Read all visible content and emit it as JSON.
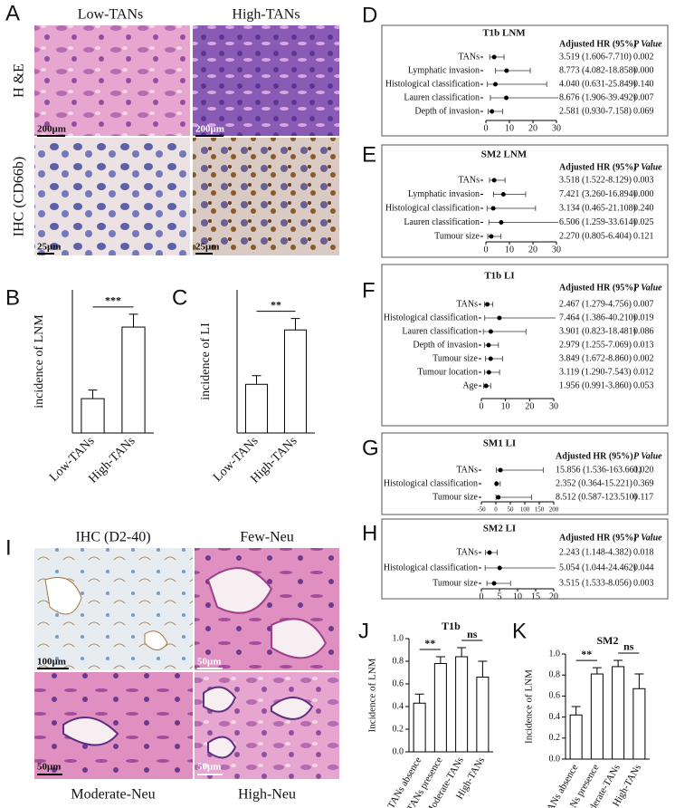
{
  "image_panels": [
    {
      "panel": "A",
      "column_labels": [
        "Low-TANs",
        "High-TANs"
      ],
      "row_labels": [
        "H &E",
        "IHC (CD66b)"
      ],
      "scale_bars": [
        "200μm",
        "200μm",
        "25μm",
        "25μm"
      ]
    },
    {
      "panel": "I",
      "titles": [
        "IHC (D2-40)",
        "Few-Neu",
        "Moderate-Neu",
        "High-Neu"
      ],
      "scale_bars": [
        "100μm",
        "50μm",
        "50μm",
        "50μm"
      ]
    }
  ],
  "chart_data": [
    {
      "type": "bar",
      "panel": "B",
      "y_label": "incidence of LNM",
      "categories": [
        "Low-TANs",
        "High-TANs"
      ],
      "values": [
        0.12,
        0.37
      ],
      "errors": [
        0.03,
        0.045
      ],
      "color": "#ffffff",
      "ylim": [
        0,
        0.5
      ],
      "annotations": [
        "***"
      ]
    },
    {
      "type": "bar",
      "panel": "C",
      "y_label": "incidence of LI",
      "categories": [
        "Low-TANs",
        "High-TANs"
      ],
      "values": [
        0.17,
        0.36
      ],
      "errors": [
        0.03,
        0.04
      ],
      "color": "#ffffff",
      "ylim": [
        0,
        0.5
      ],
      "annotations": [
        "**"
      ]
    },
    {
      "type": "forest",
      "panel": "D",
      "title": "T1b LNM",
      "columns": [
        "Adjusted HR (95%)",
        "P Value"
      ],
      "categories": [
        "TANs",
        "Lymphatic invasion",
        "Histological classification",
        "Lauren classification",
        "Depth of invasion"
      ],
      "values": [
        3.519,
        8.773,
        4.04,
        8.676,
        2.581
      ],
      "lower": [
        1.606,
        4.082,
        0.631,
        1.906,
        0.93
      ],
      "upper": [
        7.71,
        18.858,
        25.849,
        39.492,
        7.158
      ],
      "value_labels": [
        "3.519 (1.606-7.710)",
        "8.773 (4.082-18.858)",
        "4.040 (0.631-25.849)",
        "8.676 (1.906-39.492)",
        "2.581 (0.930-7.158)"
      ],
      "p_values": [
        "0.002",
        "0.000",
        "0.140",
        "0.007",
        "0.069"
      ],
      "xlim": [
        0,
        30
      ],
      "xticks": [
        0,
        10,
        20,
        30
      ]
    },
    {
      "type": "forest",
      "panel": "E",
      "title": "SM2 LNM",
      "columns": [
        "Adjusted HR (95%)",
        "P Value"
      ],
      "categories": [
        "TANs",
        "Lymphatic invasion",
        "Histological classification",
        "Lauren classification",
        "Tumour size"
      ],
      "values": [
        3.518,
        7.421,
        3.134,
        6.506,
        2.27
      ],
      "lower": [
        1.522,
        3.26,
        0.465,
        1.259,
        0.805
      ],
      "upper": [
        8.129,
        16.894,
        21.108,
        33.614,
        6.404
      ],
      "value_labels": [
        "3.518 (1.522-8.129)",
        "7.421 (3.260-16.894)",
        "3.134 (0.465-21.108)",
        "6.506 (1.259-33.614)",
        "2.270 (0.805-6.404)"
      ],
      "p_values": [
        "0.003",
        "0.000",
        "0.240",
        "0.025",
        "0.121"
      ],
      "xlim": [
        0,
        30
      ],
      "xticks": [
        0,
        10,
        20,
        30
      ]
    },
    {
      "type": "forest",
      "panel": "F",
      "title": "T1b LI",
      "columns": [
        "Adjusted HR (95%)",
        "P Value"
      ],
      "categories": [
        "TANs",
        "Histological classification",
        "Lauren classification",
        "Depth of invasion",
        "Tumour size",
        "Tumour location",
        "Age"
      ],
      "values": [
        2.467,
        7.464,
        3.901,
        2.979,
        3.849,
        3.119,
        1.956
      ],
      "lower": [
        1.279,
        1.386,
        0.823,
        1.255,
        1.672,
        1.29,
        0.991
      ],
      "upper": [
        4.756,
        40.21,
        18.481,
        7.069,
        8.86,
        7.543,
        3.86
      ],
      "value_labels": [
        "2.467 (1.279-4.756)",
        "7.464 (1.386-40.210)",
        "3.901 (0.823-18.481)",
        "2.979 (1.255-7.069)",
        "3.849 (1.672-8.860)",
        "3.119 (1.290-7.543)",
        "1.956 (0.991-3.860)"
      ],
      "p_values": [
        "0.007",
        "0.019",
        "0.086",
        "0.013",
        "0.002",
        "0.012",
        "0.053"
      ],
      "xlim": [
        0,
        30
      ],
      "xticks": [
        0,
        10,
        20,
        30
      ]
    },
    {
      "type": "forest",
      "panel": "G",
      "title": "SM1 LI",
      "columns": [
        "Adjusted HR (95%)",
        "P Value"
      ],
      "categories": [
        "TANs",
        "Histological classification",
        "Tumour size"
      ],
      "values": [
        15.856,
        2.352,
        8.512
      ],
      "lower": [
        1.536,
        0.364,
        0.587
      ],
      "upper": [
        163.661,
        15.221,
        123.51
      ],
      "value_labels": [
        "15.856 (1.536-163.661)",
        "2.352 (0.364-15.221)",
        "8.512 (0.587-123.510)"
      ],
      "p_values": [
        "0.020",
        "0.369",
        "0.117"
      ],
      "xlim": [
        -50,
        200
      ],
      "xticks": [
        -50,
        0,
        50,
        100,
        150,
        200
      ]
    },
    {
      "type": "forest",
      "panel": "H",
      "title": "SM2 LI",
      "columns": [
        "Adjusted HR (95%)",
        "P Value"
      ],
      "categories": [
        "TANs",
        "Histological classification",
        "Tumour size"
      ],
      "values": [
        2.243,
        5.054,
        3.515
      ],
      "lower": [
        1.148,
        1.044,
        1.533
      ],
      "upper": [
        4.382,
        24.462,
        8.056
      ],
      "value_labels": [
        "2.243 (1.148-4.382)",
        "5.054 (1.044-24.462)",
        "3.515 (1.533-8.056)"
      ],
      "p_values": [
        "0.018",
        "0.044",
        "0.003"
      ],
      "xlim": [
        0,
        20
      ],
      "xticks": [
        0,
        5,
        10,
        15,
        20
      ]
    },
    {
      "type": "bar",
      "panel": "J",
      "title": "T1b",
      "y_label": "Incidence of LNM",
      "categories": [
        "TANs absence",
        "TANs presence",
        "Moderate-TANs",
        "High-TANs"
      ],
      "values": [
        0.43,
        0.78,
        0.84,
        0.66
      ],
      "errors": [
        0.08,
        0.06,
        0.08,
        0.14
      ],
      "color": "#ffffff",
      "ylim": [
        0,
        1
      ],
      "yticks": [
        {
          "value": 0,
          "label": "0.0"
        },
        0.2,
        0.4,
        0.6,
        0.8,
        {
          "value": 1,
          "label": "1.0"
        }
      ],
      "annotations": [
        "**",
        "ns"
      ]
    },
    {
      "type": "bar",
      "panel": "K",
      "title": "SM2",
      "y_label": "Incidence of LNM",
      "categories": [
        "TANs absence",
        "TANs presence",
        "Moderate-TANs",
        "High-TANs"
      ],
      "values": [
        0.42,
        0.81,
        0.88,
        0.67
      ],
      "errors": [
        0.08,
        0.06,
        0.06,
        0.14
      ],
      "color": "#ffffff",
      "ylim": [
        0,
        1
      ],
      "yticks": [
        {
          "value": 0,
          "label": "0.0"
        },
        0.2,
        0.4,
        0.6,
        0.8,
        {
          "value": 1,
          "label": "1.0"
        }
      ],
      "annotations": [
        "**",
        "ns"
      ]
    }
  ]
}
